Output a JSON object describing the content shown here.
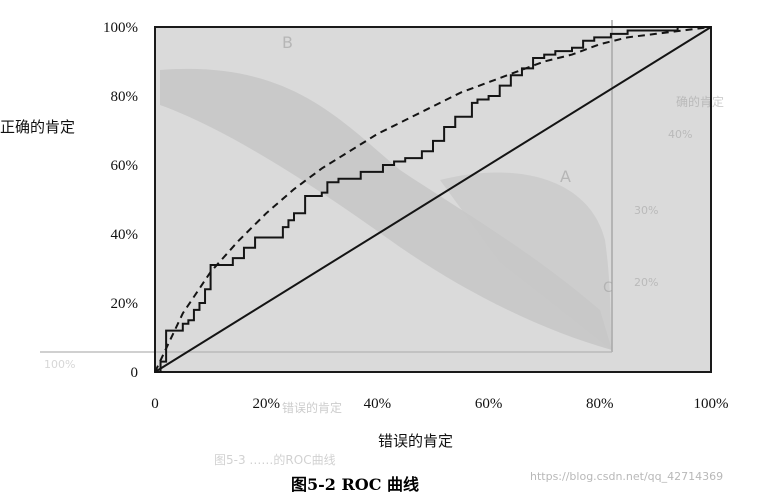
{
  "chart_data": {
    "type": "line",
    "title": "",
    "xlabel": "错误的肯定",
    "ylabel": "正确的肯定",
    "xlim": [
      0,
      100
    ],
    "ylim": [
      0,
      100
    ],
    "x_ticks": [
      "0",
      "20%",
      "40%",
      "60%",
      "80%",
      "100%"
    ],
    "y_ticks": [
      "0",
      "20%",
      "40%",
      "60%",
      "80%",
      "100%"
    ],
    "grid": false,
    "legend": "none",
    "series": [
      {
        "style": "step",
        "x": [
          0,
          1,
          2,
          4,
          5,
          6,
          7,
          8,
          9,
          10,
          12,
          14,
          16,
          18,
          19,
          20,
          23,
          24,
          25,
          27,
          28,
          30,
          31,
          33,
          34,
          37,
          39,
          41,
          43,
          45,
          48,
          50,
          52,
          54,
          55,
          57,
          58,
          60,
          62,
          64,
          66,
          68,
          70,
          72,
          74,
          75,
          77,
          78,
          79,
          81,
          82,
          84,
          85,
          87,
          88,
          90,
          92,
          94,
          96,
          100
        ],
        "y": [
          0,
          3,
          12,
          12,
          14,
          15,
          18,
          20,
          24,
          31,
          31,
          33,
          36,
          39,
          39,
          39,
          42,
          44,
          46,
          51,
          51,
          52,
          55,
          56,
          56,
          58,
          58,
          60,
          61,
          62,
          64,
          67,
          71,
          74,
          74,
          78,
          79,
          80,
          83,
          86,
          88,
          91,
          92,
          93,
          93,
          94,
          96,
          96,
          97,
          97,
          98,
          98,
          99,
          99,
          99,
          99,
          99,
          100,
          100,
          100
        ]
      },
      {
        "style": "dashed",
        "x": [
          0,
          5,
          10,
          15,
          20,
          25,
          30,
          35,
          40,
          45,
          50,
          55,
          60,
          65,
          70,
          75,
          80,
          85,
          90,
          95,
          100
        ],
        "y": [
          0,
          17,
          29,
          38,
          46,
          53,
          59,
          64,
          69,
          73,
          77,
          81,
          84,
          87,
          90,
          92,
          95,
          97,
          98,
          99,
          100
        ]
      },
      {
        "style": "solid",
        "x": [
          0,
          100
        ],
        "y": [
          0,
          100
        ]
      }
    ]
  },
  "caption": "图5-2  ROC 曲线",
  "watermark": "https://blog.csdn.net/qq_42714369",
  "colors": {
    "plot_fill": "#dadada",
    "shape_fill": "#c2c2c2",
    "line": "#141414",
    "frame": "#1a1a1a"
  },
  "ghost_text": {
    "b_label": "B",
    "a_label": "A",
    "c_label": "C",
    "side_label": "确的肯定",
    "side_ticks": [
      "40%",
      "30%",
      "20%"
    ],
    "under_label": "错误的肯定",
    "under_caption": "图5-3 ……的ROC曲线",
    "left_tick": "100%"
  }
}
